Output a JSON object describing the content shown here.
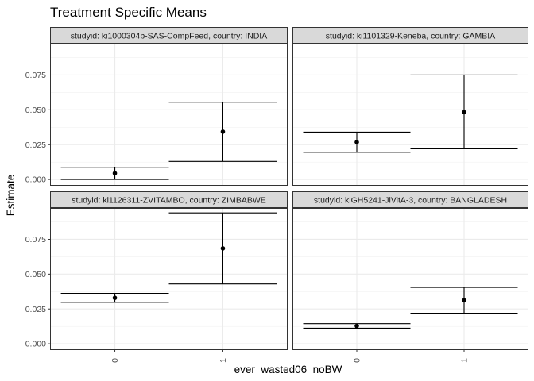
{
  "chart_data": {
    "type": "errorbar",
    "title": "Treatment Specific Means",
    "xlabel": "ever_wasted06_noBW",
    "ylabel": "Estimate",
    "x_categories": [
      "0",
      "1"
    ],
    "y_ticks": [
      0.0,
      0.025,
      0.05,
      0.075
    ],
    "y_tick_labels": [
      "0.000",
      "0.025",
      "0.050",
      "0.075"
    ],
    "ylim": [
      -0.0045,
      0.0975
    ],
    "grid": true,
    "facets": [
      {
        "strip": "studyid: ki1000304b-SAS-CompFeed, country: INDIA",
        "points": [
          {
            "x": "0",
            "estimate": 0.0045,
            "lower": 0.0,
            "upper": 0.0088
          },
          {
            "x": "1",
            "estimate": 0.0343,
            "lower": 0.013,
            "upper": 0.0555
          }
        ]
      },
      {
        "strip": "studyid: ki1101329-Keneba, country: GAMBIA",
        "points": [
          {
            "x": "0",
            "estimate": 0.0268,
            "lower": 0.0195,
            "upper": 0.034
          },
          {
            "x": "1",
            "estimate": 0.0483,
            "lower": 0.022,
            "upper": 0.075
          }
        ]
      },
      {
        "strip": "studyid: ki1126311-ZVITAMBO, country: ZIMBABWE",
        "points": [
          {
            "x": "0",
            "estimate": 0.033,
            "lower": 0.0298,
            "upper": 0.0362
          },
          {
            "x": "1",
            "estimate": 0.0685,
            "lower": 0.043,
            "upper": 0.094
          }
        ]
      },
      {
        "strip": "studyid: kiGH5241-JiVitA-3, country: BANGLADESH",
        "points": [
          {
            "x": "0",
            "estimate": 0.0128,
            "lower": 0.0112,
            "upper": 0.0145
          },
          {
            "x": "1",
            "estimate": 0.0312,
            "lower": 0.022,
            "upper": 0.0405
          }
        ]
      }
    ]
  }
}
